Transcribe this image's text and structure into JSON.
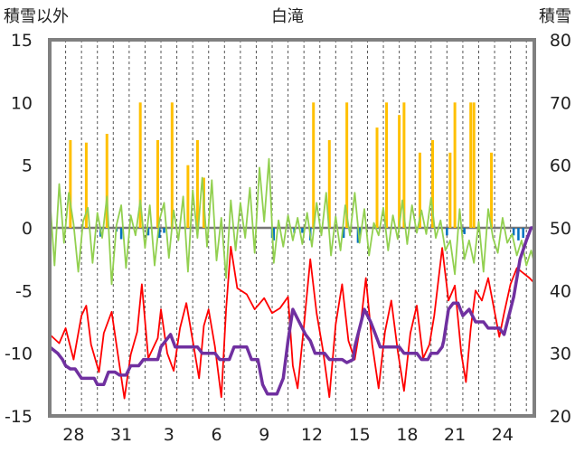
{
  "chart_data": {
    "type": "line",
    "title": "白滝",
    "left_axis_label": "積雪以外",
    "right_axis_label": "積雪",
    "left_ylim": [
      -15,
      15
    ],
    "left_ticks": [
      15,
      10,
      5,
      0,
      -5,
      -10,
      -15
    ],
    "right_ylim": [
      20,
      80
    ],
    "right_ticks": [
      80,
      70,
      60,
      50,
      40,
      30,
      20
    ],
    "x_range": [
      0,
      30.5
    ],
    "x_tick_labels": [
      {
        "x": 1.5,
        "label": "28"
      },
      {
        "x": 4.5,
        "label": "31"
      },
      {
        "x": 7.5,
        "label": "3"
      },
      {
        "x": 10.5,
        "label": "6"
      },
      {
        "x": 13.5,
        "label": "9"
      },
      {
        "x": 16.5,
        "label": "12"
      },
      {
        "x": 19.5,
        "label": "15"
      },
      {
        "x": 22.5,
        "label": "18"
      },
      {
        "x": 25.5,
        "label": "21"
      },
      {
        "x": 28.5,
        "label": "24"
      }
    ],
    "grid": {
      "vertical_dashed": true,
      "zero_line": true
    },
    "colors": {
      "precipitation": "#ffc000",
      "wind_negative": "#0070c0",
      "temp_max": "#ff0000",
      "wind_series": "#92d050",
      "snow_depth": "#7030a0",
      "frame": "#808080"
    },
    "series": [
      {
        "key": "precipitation_bars",
        "axis": "left",
        "points": [
          [
            1.3,
            7
          ],
          [
            2.3,
            6.8
          ],
          [
            3.6,
            7.5
          ],
          [
            5.7,
            10
          ],
          [
            6.8,
            7
          ],
          [
            7.7,
            10
          ],
          [
            8.7,
            5
          ],
          [
            9.3,
            7
          ],
          [
            9.7,
            4
          ],
          [
            16.6,
            10
          ],
          [
            17.6,
            7
          ],
          [
            18.7,
            10
          ],
          [
            20.6,
            8
          ],
          [
            21.2,
            10
          ],
          [
            22.0,
            9
          ],
          [
            22.3,
            10
          ],
          [
            23.3,
            6
          ],
          [
            24.1,
            7
          ],
          [
            25.2,
            6
          ],
          [
            25.5,
            10
          ],
          [
            26.5,
            10
          ],
          [
            26.7,
            10
          ],
          [
            27.8,
            6
          ]
        ]
      },
      {
        "key": "wind_negative_bars",
        "axis": "left",
        "points": [
          [
            3.2,
            -0.7
          ],
          [
            4.2,
            -0.3
          ],
          [
            4.5,
            -0.9
          ],
          [
            6.2,
            -0.6
          ],
          [
            6.9,
            -0.8
          ],
          [
            7.2,
            -0.4
          ],
          [
            14.0,
            -0.8
          ],
          [
            14.1,
            -1.0
          ],
          [
            15.4,
            -0.4
          ],
          [
            15.9,
            -0.4
          ],
          [
            16.4,
            -1.0
          ],
          [
            18.5,
            -0.8
          ],
          [
            19.4,
            -1.2
          ],
          [
            19.5,
            -0.9
          ],
          [
            25.0,
            -0.6
          ],
          [
            26.1,
            -0.5
          ],
          [
            29.2,
            -0.6
          ],
          [
            29.5,
            -1.0
          ],
          [
            29.8,
            -0.8
          ]
        ]
      },
      {
        "key": "temp_max_line",
        "axis": "left",
        "points": [
          [
            0,
            -8.5
          ],
          [
            0.6,
            -9.2
          ],
          [
            1.0,
            -8.0
          ],
          [
            1.5,
            -10.5
          ],
          [
            2.0,
            -7.0
          ],
          [
            2.3,
            -6.2
          ],
          [
            2.6,
            -9.3
          ],
          [
            3.1,
            -11.5
          ],
          [
            3.4,
            -8.4
          ],
          [
            3.9,
            -6.7
          ],
          [
            4.3,
            -10.2
          ],
          [
            4.7,
            -13.6
          ],
          [
            5.1,
            -10.1
          ],
          [
            5.5,
            -8.3
          ],
          [
            5.8,
            -4.5
          ],
          [
            6.2,
            -10.4
          ],
          [
            6.8,
            -8.8
          ],
          [
            7.0,
            -6.5
          ],
          [
            7.4,
            -10.0
          ],
          [
            7.8,
            -11.4
          ],
          [
            8.2,
            -8.0
          ],
          [
            8.6,
            -6.0
          ],
          [
            9.0,
            -9.0
          ],
          [
            9.4,
            -12.0
          ],
          [
            9.7,
            -7.8
          ],
          [
            10.0,
            -6.5
          ],
          [
            10.4,
            -9.5
          ],
          [
            10.8,
            -13.5
          ],
          [
            11.1,
            -6.5
          ],
          [
            11.4,
            -1.5
          ],
          [
            11.8,
            -4.8
          ],
          [
            12.4,
            -5.3
          ],
          [
            12.9,
            -6.5
          ],
          [
            13.5,
            -5.6
          ],
          [
            14.0,
            -6.8
          ],
          [
            14.5,
            -6.4
          ],
          [
            15.0,
            -5.5
          ],
          [
            15.3,
            -11.0
          ],
          [
            15.6,
            -12.8
          ],
          [
            16.0,
            -7.8
          ],
          [
            16.4,
            -2.5
          ],
          [
            16.8,
            -6.8
          ],
          [
            17.2,
            -9.8
          ],
          [
            17.6,
            -13.5
          ],
          [
            18.0,
            -7.7
          ],
          [
            18.4,
            -4.5
          ],
          [
            18.8,
            -9.0
          ],
          [
            19.2,
            -10.5
          ],
          [
            19.6,
            -7.4
          ],
          [
            19.9,
            -4.0
          ],
          [
            20.3,
            -9.3
          ],
          [
            20.7,
            -12.8
          ],
          [
            21.1,
            -8.3
          ],
          [
            21.5,
            -5.8
          ],
          [
            21.9,
            -9.8
          ],
          [
            22.3,
            -13.0
          ],
          [
            22.7,
            -8.4
          ],
          [
            23.1,
            -6.2
          ],
          [
            23.5,
            -10.4
          ],
          [
            23.9,
            -9.3
          ],
          [
            24.2,
            -7.0
          ],
          [
            24.7,
            -1.6
          ],
          [
            25.1,
            -5.8
          ],
          [
            25.5,
            -4.6
          ],
          [
            25.9,
            -10.0
          ],
          [
            26.2,
            -12.3
          ],
          [
            26.5,
            -8.0
          ],
          [
            26.8,
            -5.0
          ],
          [
            27.2,
            -5.8
          ],
          [
            27.6,
            -4.0
          ],
          [
            28.0,
            -6.7
          ],
          [
            28.3,
            -8.7
          ],
          [
            28.6,
            -6.8
          ],
          [
            29.0,
            -4.5
          ],
          [
            29.4,
            -3.2
          ],
          [
            29.8,
            -3.6
          ],
          [
            30.2,
            -4.0
          ],
          [
            30.5,
            -4.4
          ]
        ]
      },
      {
        "key": "wind_line",
        "axis": "left",
        "points": [
          [
            0,
            2.5
          ],
          [
            0.3,
            -3.0
          ],
          [
            0.6,
            3.5
          ],
          [
            0.9,
            -1.2
          ],
          [
            1.2,
            2.8
          ],
          [
            1.5,
            0.3
          ],
          [
            1.8,
            -3.5
          ],
          [
            2.1,
            0.5
          ],
          [
            2.4,
            1.6
          ],
          [
            2.7,
            -2.8
          ],
          [
            3.0,
            1.2
          ],
          [
            3.3,
            -0.8
          ],
          [
            3.6,
            2.5
          ],
          [
            3.9,
            -4.5
          ],
          [
            4.2,
            0.2
          ],
          [
            4.5,
            1.8
          ],
          [
            4.8,
            -3.2
          ],
          [
            5.1,
            1.0
          ],
          [
            5.4,
            -0.6
          ],
          [
            5.7,
            2.2
          ],
          [
            6.0,
            -1.6
          ],
          [
            6.3,
            1.8
          ],
          [
            6.6,
            -3.0
          ],
          [
            6.9,
            0.6
          ],
          [
            7.2,
            2.0
          ],
          [
            7.5,
            -2.4
          ],
          [
            7.8,
            1.4
          ],
          [
            8.1,
            -1.0
          ],
          [
            8.4,
            2.5
          ],
          [
            8.7,
            -3.5
          ],
          [
            9.0,
            3.0
          ],
          [
            9.3,
            -0.8
          ],
          [
            9.6,
            4.0
          ],
          [
            9.9,
            -1.5
          ],
          [
            10.2,
            3.8
          ],
          [
            10.5,
            -2.6
          ],
          [
            10.8,
            0.8
          ],
          [
            11.1,
            -4.0
          ],
          [
            11.4,
            2.2
          ],
          [
            11.7,
            -1.8
          ],
          [
            12.0,
            2.0
          ],
          [
            12.3,
            -0.8
          ],
          [
            12.6,
            3.2
          ],
          [
            12.9,
            -2.0
          ],
          [
            13.2,
            4.8
          ],
          [
            13.5,
            0.5
          ],
          [
            13.8,
            5.5
          ],
          [
            14.1,
            -2.8
          ],
          [
            14.4,
            0.6
          ],
          [
            14.7,
            -1.5
          ],
          [
            15.0,
            1.0
          ],
          [
            15.3,
            -1.0
          ],
          [
            15.6,
            0.8
          ],
          [
            15.9,
            -1.3
          ],
          [
            16.2,
            1.2
          ],
          [
            16.5,
            -1.5
          ],
          [
            16.8,
            2.0
          ],
          [
            17.1,
            -0.6
          ],
          [
            17.4,
            2.8
          ],
          [
            17.7,
            -2.2
          ],
          [
            18.0,
            0.9
          ],
          [
            18.3,
            -1.8
          ],
          [
            18.6,
            1.8
          ],
          [
            18.9,
            -0.6
          ],
          [
            19.2,
            2.8
          ],
          [
            19.5,
            -1.2
          ],
          [
            19.8,
            1.5
          ],
          [
            20.1,
            -2.2
          ],
          [
            20.4,
            0.4
          ],
          [
            20.7,
            -0.6
          ],
          [
            21.0,
            1.6
          ],
          [
            21.3,
            -1.8
          ],
          [
            21.6,
            1.0
          ],
          [
            21.9,
            -0.9
          ],
          [
            22.2,
            2.2
          ],
          [
            22.5,
            -1.3
          ],
          [
            22.8,
            1.8
          ],
          [
            23.1,
            -0.4
          ],
          [
            23.4,
            1.4
          ],
          [
            23.7,
            -0.5
          ],
          [
            24.0,
            2.4
          ],
          [
            24.3,
            -0.8
          ],
          [
            24.6,
            0.6
          ],
          [
            24.9,
            -1.8
          ],
          [
            25.2,
            -1.0
          ],
          [
            25.5,
            -3.7
          ],
          [
            25.8,
            1.5
          ],
          [
            26.1,
            -2.5
          ],
          [
            26.4,
            -1.0
          ],
          [
            26.7,
            -2.8
          ],
          [
            27.0,
            0.5
          ],
          [
            27.3,
            -3.5
          ],
          [
            27.6,
            1.5
          ],
          [
            27.9,
            -0.8
          ],
          [
            28.2,
            -2.0
          ],
          [
            28.5,
            0.8
          ],
          [
            28.8,
            -1.2
          ],
          [
            29.1,
            -0.5
          ],
          [
            29.4,
            -2.2
          ],
          [
            29.7,
            -1.0
          ],
          [
            30.0,
            -3.0
          ],
          [
            30.3,
            -1.8
          ],
          [
            30.5,
            -2.8
          ]
        ]
      },
      {
        "key": "snow_depth_line",
        "axis": "right",
        "points": [
          [
            0,
            31
          ],
          [
            0.5,
            30
          ],
          [
            0.8,
            29
          ],
          [
            1.0,
            28
          ],
          [
            1.3,
            27.5
          ],
          [
            1.6,
            27.5
          ],
          [
            2.0,
            26
          ],
          [
            2.8,
            26
          ],
          [
            3.0,
            25
          ],
          [
            3.4,
            25
          ],
          [
            3.7,
            27
          ],
          [
            4.1,
            27
          ],
          [
            4.4,
            26.5
          ],
          [
            4.8,
            26.5
          ],
          [
            5.1,
            28
          ],
          [
            5.6,
            28
          ],
          [
            5.9,
            29
          ],
          [
            6.8,
            29
          ],
          [
            7.0,
            31
          ],
          [
            7.3,
            32
          ],
          [
            7.6,
            33
          ],
          [
            7.9,
            31
          ],
          [
            8.3,
            31
          ],
          [
            8.6,
            31
          ],
          [
            9.3,
            31
          ],
          [
            9.6,
            30
          ],
          [
            10.4,
            30
          ],
          [
            10.7,
            29
          ],
          [
            11.3,
            29
          ],
          [
            11.6,
            31
          ],
          [
            12.4,
            31
          ],
          [
            12.7,
            29
          ],
          [
            13.1,
            29
          ],
          [
            13.4,
            25
          ],
          [
            13.7,
            23.5
          ],
          [
            14.3,
            23.5
          ],
          [
            14.7,
            26
          ],
          [
            15.0,
            32
          ],
          [
            15.3,
            37
          ],
          [
            15.7,
            35
          ],
          [
            16.1,
            33
          ],
          [
            16.4,
            32
          ],
          [
            16.7,
            30
          ],
          [
            17.3,
            30
          ],
          [
            17.6,
            29
          ],
          [
            18.1,
            29
          ],
          [
            18.4,
            29
          ],
          [
            18.7,
            28.5
          ],
          [
            19.1,
            29
          ],
          [
            19.2,
            31
          ],
          [
            19.5,
            34
          ],
          [
            19.8,
            37
          ],
          [
            20.2,
            35
          ],
          [
            20.5,
            33
          ],
          [
            20.8,
            31
          ],
          [
            21.1,
            31
          ],
          [
            21.4,
            31
          ],
          [
            22.0,
            31
          ],
          [
            22.3,
            30
          ],
          [
            22.7,
            30
          ],
          [
            23.1,
            30
          ],
          [
            23.4,
            29
          ],
          [
            23.8,
            29
          ],
          [
            24.0,
            30
          ],
          [
            24.4,
            30
          ],
          [
            24.7,
            31
          ],
          [
            24.8,
            32
          ],
          [
            25.1,
            37
          ],
          [
            25.4,
            38
          ],
          [
            25.7,
            38
          ],
          [
            26.0,
            36
          ],
          [
            26.4,
            37
          ],
          [
            26.8,
            35
          ],
          [
            27.3,
            35
          ],
          [
            27.6,
            34
          ],
          [
            28.3,
            34
          ],
          [
            28.6,
            33
          ],
          [
            28.9,
            36
          ],
          [
            29.2,
            39
          ],
          [
            29.6,
            45
          ],
          [
            30.0,
            48
          ],
          [
            30.3,
            50
          ],
          [
            30.5,
            50
          ]
        ]
      }
    ]
  }
}
